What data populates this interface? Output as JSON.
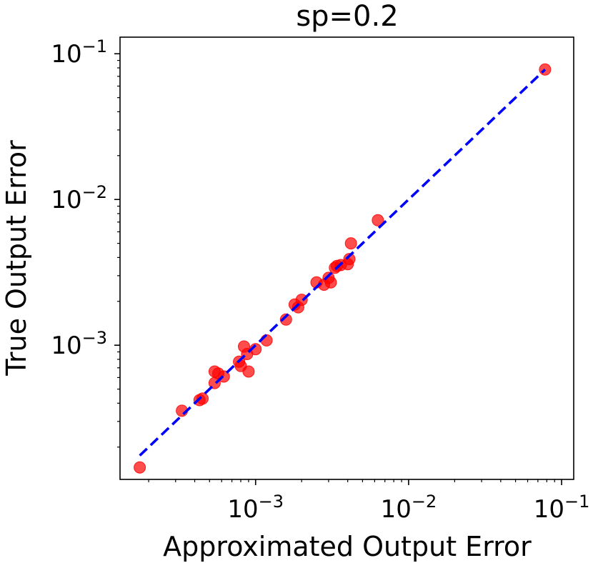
{
  "chart_data": {
    "type": "scatter",
    "title": "sp=0.2",
    "xlabel": "Approximated Output Error",
    "ylabel": "True Output Error",
    "xscale": "log",
    "yscale": "log",
    "xlim": [
      0.00013,
      0.12
    ],
    "ylim": [
      0.00012,
      0.13
    ],
    "grid": false,
    "x_ticks": [
      {
        "value": 0.001,
        "base": "10",
        "exp": "−3"
      },
      {
        "value": 0.01,
        "base": "10",
        "exp": "−2"
      },
      {
        "value": 0.1,
        "base": "10",
        "exp": "−1"
      }
    ],
    "y_ticks": [
      {
        "value": 0.001,
        "base": "10",
        "exp": "−3"
      },
      {
        "value": 0.01,
        "base": "10",
        "exp": "−2"
      },
      {
        "value": 0.1,
        "base": "10",
        "exp": "−1"
      }
    ],
    "series": [
      {
        "kind": "scatter",
        "color": "#ff0000",
        "points": [
          [
            0.000175,
            0.000145
          ],
          [
            0.00033,
            0.000355
          ],
          [
            0.00043,
            0.00042
          ],
          [
            0.00045,
            0.00043
          ],
          [
            0.00054,
            0.00055
          ],
          [
            0.00054,
            0.00066
          ],
          [
            0.00057,
            0.00064
          ],
          [
            0.00062,
            0.00061
          ],
          [
            0.00078,
            0.00077
          ],
          [
            0.0008,
            0.00072
          ],
          [
            0.00084,
            0.00098
          ],
          [
            0.00088,
            0.00087
          ],
          [
            0.0009,
            0.00066
          ],
          [
            0.001,
            0.00094
          ],
          [
            0.00118,
            0.00108
          ],
          [
            0.00158,
            0.0015
          ],
          [
            0.0018,
            0.0019
          ],
          [
            0.0019,
            0.00182
          ],
          [
            0.002,
            0.00205
          ],
          [
            0.0025,
            0.0027
          ],
          [
            0.0028,
            0.0026
          ],
          [
            0.003,
            0.0029
          ],
          [
            0.0031,
            0.0027
          ],
          [
            0.0033,
            0.0034
          ],
          [
            0.0034,
            0.0035
          ],
          [
            0.0036,
            0.00355
          ],
          [
            0.004,
            0.0036
          ],
          [
            0.0041,
            0.0039
          ],
          [
            0.0042,
            0.005
          ],
          [
            0.0063,
            0.0072
          ],
          [
            0.078,
            0.078
          ]
        ]
      },
      {
        "kind": "line",
        "style": "dashed",
        "color": "#0000ff",
        "points": [
          [
            0.000175,
            0.000175
          ],
          [
            0.078,
            0.078
          ]
        ]
      }
    ]
  }
}
